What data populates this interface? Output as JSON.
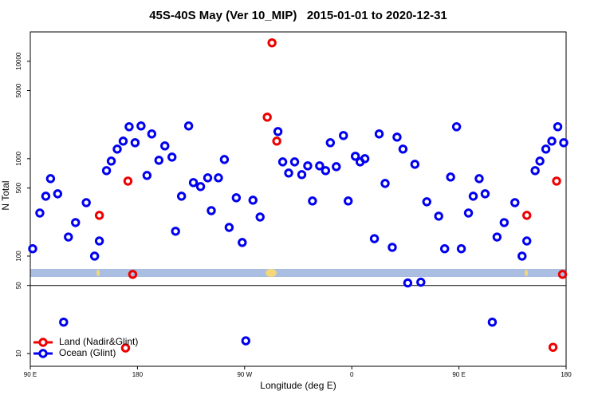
{
  "chart_data": {
    "type": "scatter",
    "title": "45S-40S May (Ver 10_MIP)   2015-01-01 to 2020-12-31",
    "x_label": "Longitude (deg E)",
    "y_label": "N Total",
    "log_y": true,
    "legend": "bottom-left",
    "hline": 50,
    "xlim": [
      90,
      540
    ],
    "ylim": [
      7.4,
      20000
    ],
    "xticks": [
      {
        "value": 90,
        "label": "90 E"
      },
      180,
      {
        "value": 270,
        "label": "90 W"
      },
      {
        "value": 360,
        "label": "0"
      },
      {
        "value": 450,
        "label": "90 E"
      },
      {
        "value": 540,
        "label": "180"
      }
    ],
    "yticks": [
      10,
      50,
      100,
      500,
      1000,
      5000,
      10000
    ],
    "series": [
      {
        "name": "Land (Nadir&Glint)",
        "color": "#ee0000",
        "x": [
          148,
          172,
          176,
          293,
          289,
          297,
          507,
          532,
          537,
          170,
          529
        ],
        "values": [
          262,
          589,
          65,
          15450,
          2668,
          1514,
          262,
          589,
          65,
          11.4,
          11.6
        ]
      },
      {
        "name": "Ocean (Glint)",
        "color": "#0000ee",
        "x": [
          92,
          98,
          103,
          107,
          113,
          122,
          128,
          137,
          144,
          148,
          154,
          158,
          163,
          168,
          173,
          178,
          183,
          188,
          192,
          198,
          203,
          209,
          212,
          217,
          223,
          227,
          233,
          239,
          242,
          248,
          253,
          257,
          263,
          268,
          277,
          283,
          298,
          302,
          307,
          312,
          318,
          323,
          327,
          333,
          338,
          342,
          347,
          353,
          357,
          363,
          367,
          371,
          379,
          383,
          388,
          394,
          398,
          403,
          407,
          413,
          418,
          423,
          433,
          438,
          443,
          448,
          452,
          458,
          462,
          467,
          472,
          482,
          488,
          497,
          503,
          507,
          514,
          518,
          523,
          528,
          533,
          538,
          118,
          271,
          478
        ],
        "values": [
          119,
          277,
          412,
          624,
          436,
          157,
          221,
          354,
          100,
          143,
          754,
          945,
          1254,
          1514,
          2128,
          1459,
          2168,
          673,
          1795,
          963,
          1353,
          1038,
          180,
          412,
          2168,
          568,
          517,
          636,
          293,
          636,
          981,
          197,
          397,
          138,
          375,
          252,
          1900,
          927,
          712,
          927,
          686,
          844,
          368,
          844,
          754,
          1459,
          828,
          1729,
          368,
          1059,
          927,
          1000,
          151,
          1795,
          557,
          123,
          1665,
          1254,
          53,
          876,
          54,
          361,
          257,
          119,
          648,
          2128,
          119,
          277,
          412,
          624,
          436,
          157,
          221,
          354,
          100,
          143,
          754,
          945,
          1254,
          1514,
          2128,
          1459,
          21,
          13.5,
          21
        ]
      }
    ]
  }
}
